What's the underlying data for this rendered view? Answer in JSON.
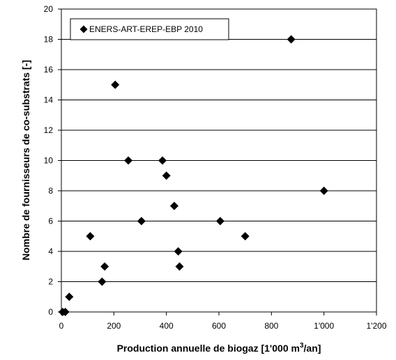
{
  "chart_data": {
    "type": "scatter",
    "title": "",
    "xlabel": "Production annuelle de biogaz [1'000 m",
    "xlabel_sup": "3",
    "xlabel_tail": "/an]",
    "ylabel": "Nombre de fournisseurs de co-substrats [-]",
    "xlim": [
      0,
      1200
    ],
    "ylim": [
      0,
      20
    ],
    "x_ticks": [
      0,
      200,
      400,
      600,
      800,
      1000,
      1200
    ],
    "x_tick_labels": [
      "0",
      "200",
      "400",
      "600",
      "800",
      "1'000",
      "1'200"
    ],
    "y_ticks": [
      0,
      2,
      4,
      6,
      8,
      10,
      12,
      14,
      16,
      18,
      20
    ],
    "y_tick_labels": [
      "0",
      "2",
      "4",
      "6",
      "8",
      "10",
      "12",
      "14",
      "16",
      "18",
      "20"
    ],
    "grid": "horizontal",
    "legend_position": "top-left",
    "marker": "diamond",
    "marker_color": "#000000",
    "series": [
      {
        "name": "ENERS-ART-EREP-EBP 2010",
        "points": [
          [
            5,
            0
          ],
          [
            15,
            0
          ],
          [
            30,
            1
          ],
          [
            110,
            5
          ],
          [
            155,
            2
          ],
          [
            165,
            3
          ],
          [
            205,
            15
          ],
          [
            255,
            10
          ],
          [
            305,
            6
          ],
          [
            385,
            10
          ],
          [
            400,
            9
          ],
          [
            430,
            7
          ],
          [
            445,
            4
          ],
          [
            450,
            3
          ],
          [
            605,
            6
          ],
          [
            700,
            5
          ],
          [
            875,
            18
          ],
          [
            1000,
            8
          ]
        ]
      }
    ]
  }
}
